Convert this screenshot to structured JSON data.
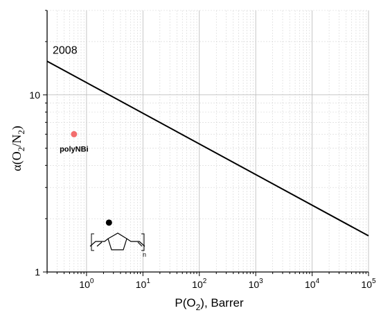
{
  "chart_data": {
    "type": "line",
    "xlabel_prefix": "P(O",
    "xlabel_sub": "2",
    "xlabel_suffix": "), Barrer",
    "ylabel_parts": [
      "α(O",
      "2",
      "/N",
      "2",
      ")"
    ],
    "x_scale": "log",
    "y_scale": "log",
    "xlim": [
      0.2,
      100000
    ],
    "ylim": [
      1,
      30
    ],
    "grid": true,
    "x_ticks": [
      {
        "value": 1,
        "base": "10",
        "exp": "0"
      },
      {
        "value": 10,
        "base": "10",
        "exp": "1"
      },
      {
        "value": 100,
        "base": "10",
        "exp": "2"
      },
      {
        "value": 1000,
        "base": "10",
        "exp": "3"
      },
      {
        "value": 10000,
        "base": "10",
        "exp": "4"
      },
      {
        "value": 100000,
        "base": "10",
        "exp": "5"
      }
    ],
    "y_ticks": [
      {
        "value": 1,
        "label": "1"
      },
      {
        "value": 10,
        "label": "10"
      }
    ],
    "series": [
      {
        "name": "2008",
        "kind": "line",
        "color": "#000000",
        "x": [
          0.2,
          100000
        ],
        "y": [
          15.5,
          1.6
        ]
      },
      {
        "name": "polyNBi",
        "kind": "point",
        "color": "#f26d6d",
        "x": [
          0.6
        ],
        "y": [
          6.0
        ]
      }
    ],
    "annotations": [
      {
        "text": "2008",
        "x": 0.2,
        "y": 16.5
      }
    ],
    "structure_marker": {
      "color": "#000000",
      "x": 2.5,
      "y": 1.9
    },
    "structure_subscript": "n"
  }
}
